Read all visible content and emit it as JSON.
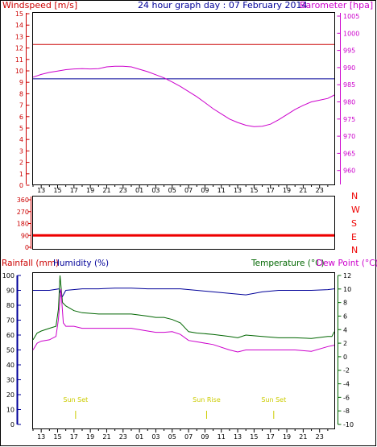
{
  "colors": {
    "windspeed": "#cc0000",
    "barometer": "#cc00cc",
    "title": "#000099",
    "humidity": "#000099",
    "temperature": "#006600",
    "dewpoint": "#cc00cc",
    "winddir": "#ee0000",
    "sun": "#cccc00",
    "frame": "#000000"
  },
  "header": {
    "windspeed_label": "Windspeed [m/s]",
    "title": "24 hour graph day : 07 February 2014",
    "barometer_label": "Barometer [hpa]"
  },
  "x_axis": {
    "ticks": [
      "13",
      "15",
      "17",
      "19",
      "21",
      "23",
      "01",
      "03",
      "05",
      "07",
      "09",
      "11",
      "13",
      "15",
      "17",
      "19",
      "21",
      "23"
    ]
  },
  "winddir_labels": [
    "N",
    "W",
    "S",
    "E",
    "N"
  ],
  "lower_header": {
    "rainfall": "Rainfall (mm)",
    "humidity": "Humidity (%)",
    "temperature": "Temperature (°C)",
    "dewpoint": "Dew Point (°C)"
  },
  "sun_labels": [
    {
      "label": "Sun Set",
      "hour": 17.2
    },
    {
      "label": "Sun Rise",
      "hour": 33.2
    },
    {
      "label": "Sun Set",
      "hour": 41.4
    }
  ],
  "chart_data": [
    {
      "type": "line",
      "title": "24 hour graph day : 07 February 2014",
      "x_unit": "hour",
      "ylabel": "Windspeed [m/s]",
      "ylim": [
        0,
        15
      ],
      "y_ticks": [
        0,
        1,
        2,
        3,
        4,
        5,
        6,
        7,
        8,
        9,
        10,
        11,
        12,
        13,
        14,
        15
      ],
      "y2label": "Barometer [hpa]",
      "y2lim": [
        955,
        1005
      ],
      "y2_ticks": [
        960,
        965,
        970,
        975,
        980,
        985,
        990,
        995,
        1000,
        1005
      ],
      "series": [
        {
          "name": "Windspeed [m/s]",
          "color": "#cc0000",
          "axis": "y",
          "x": [
            12,
            48.8
          ],
          "values": [
            12.3,
            12.3
          ]
        },
        {
          "name": "",
          "color": "#000099",
          "axis": "y",
          "x": [
            12,
            48.8
          ],
          "values": [
            9.3,
            9.3
          ]
        },
        {
          "name": "Barometer [hpa]",
          "color": "#cc00cc",
          "axis": "y2",
          "x": [
            12,
            13,
            14,
            15,
            16,
            17,
            18,
            19,
            20,
            21,
            22,
            23,
            24,
            25,
            26,
            27,
            28,
            29,
            30,
            31,
            32,
            33,
            34,
            35,
            36,
            37,
            38,
            39,
            40,
            41,
            42,
            43,
            44,
            45,
            46,
            47,
            48,
            48.8
          ],
          "values": [
            987.2,
            988,
            988.6,
            989,
            989.4,
            989.6,
            989.7,
            989.6,
            989.7,
            990.2,
            990.4,
            990.4,
            990.2,
            989.5,
            988.8,
            987.9,
            987.0,
            985.8,
            984.5,
            983.0,
            981.5,
            979.8,
            978.0,
            976.5,
            975.0,
            974.0,
            973.2,
            972.8,
            972.9,
            973.5,
            974.8,
            976.3,
            977.8,
            979.0,
            980.0,
            980.5,
            981.0,
            982.0
          ]
        }
      ]
    },
    {
      "type": "line",
      "title": "",
      "x_unit": "hour",
      "y_ticks": [
        360,
        270,
        180,
        90,
        0
      ],
      "ylim": [
        0,
        360
      ],
      "series": [
        {
          "name": "",
          "color": "#ee0000",
          "x": [
            12,
            48.8
          ],
          "values": [
            90,
            90
          ]
        }
      ]
    },
    {
      "type": "line",
      "title": "",
      "x_unit": "hour",
      "ylabel": "Rainfall (mm) / Humidity (%)",
      "ylim": [
        0,
        100
      ],
      "y_ticks": [
        0,
        10,
        20,
        30,
        40,
        50,
        60,
        70,
        80,
        90,
        100
      ],
      "y2label": "Temperature (°C) / Dew Point (°C)",
      "y2lim": [
        -10,
        12
      ],
      "y2_ticks": [
        -10,
        -8,
        -6,
        -4,
        -2,
        0,
        2,
        4,
        6,
        8,
        10,
        12
      ],
      "series": [
        {
          "name": "Humidity (%)",
          "color": "#000099",
          "axis": "y",
          "x": [
            12,
            14,
            15.2,
            15.5,
            16,
            18,
            20,
            22,
            24,
            26,
            28,
            30,
            32,
            34,
            36,
            38,
            40,
            42,
            44,
            46,
            48,
            48.8
          ],
          "values": [
            90,
            90,
            91,
            85,
            90,
            91,
            91,
            91.5,
            91.5,
            91,
            91,
            91,
            90,
            89,
            88,
            87,
            89,
            90,
            90,
            90,
            90.5,
            91
          ]
        },
        {
          "name": "Temperature (°C)",
          "color": "#006600",
          "axis": "y2",
          "x": [
            12,
            12.5,
            13,
            14,
            14.8,
            15.1,
            15.3,
            15.6,
            16,
            17,
            18,
            20,
            22,
            24,
            26,
            27,
            28,
            29,
            30,
            31,
            32,
            34,
            36,
            37,
            38,
            40,
            42,
            44,
            46,
            48,
            48.5,
            48.8
          ],
          "values": [
            2.5,
            3.5,
            3.8,
            4.2,
            4.5,
            7.0,
            12.0,
            8.0,
            7.5,
            6.8,
            6.5,
            6.3,
            6.3,
            6.3,
            6.0,
            5.8,
            5.8,
            5.5,
            5.0,
            3.7,
            3.5,
            3.3,
            3.0,
            2.8,
            3.2,
            3.0,
            2.8,
            2.8,
            2.7,
            3.0,
            3.0,
            3.7
          ]
        },
        {
          "name": "Dew Point (°C)",
          "color": "#cc00cc",
          "axis": "y2",
          "x": [
            12,
            12.5,
            13,
            14,
            14.8,
            15.1,
            15.4,
            15.7,
            16,
            17,
            18,
            20,
            22,
            24,
            26,
            27,
            28,
            29,
            30,
            31,
            32,
            34,
            36,
            37,
            38,
            40,
            42,
            44,
            46,
            48,
            48.8
          ],
          "values": [
            1.0,
            2.0,
            2.3,
            2.5,
            3.0,
            5.5,
            10.0,
            5.0,
            4.5,
            4.5,
            4.2,
            4.2,
            4.2,
            4.2,
            3.8,
            3.6,
            3.6,
            3.7,
            3.3,
            2.4,
            2.2,
            1.8,
            1.0,
            0.7,
            1.0,
            1.0,
            1.0,
            1.0,
            0.8,
            1.5,
            1.7
          ]
        }
      ]
    }
  ]
}
